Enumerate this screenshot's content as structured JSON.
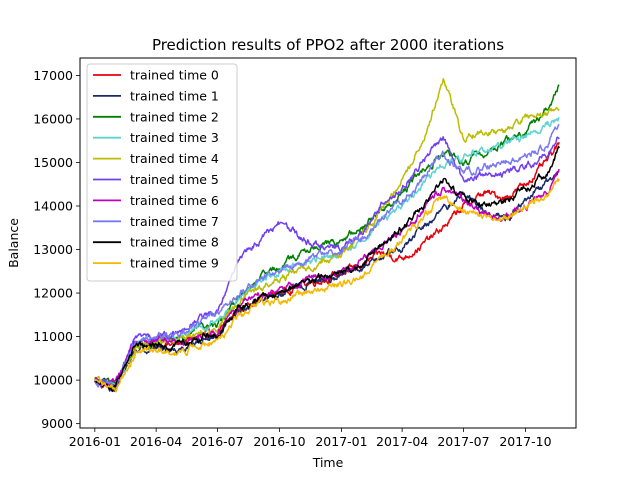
{
  "chart_data": {
    "type": "line",
    "title": "Prediction results of PPO2 after 2000 iterations",
    "xlabel": "Time",
    "ylabel": "Balance",
    "xlim": [
      "2015-12-10",
      "2017-12-15"
    ],
    "ylim": [
      8900,
      17400
    ],
    "x_ticks": [
      "2016-01",
      "2016-04",
      "2016-07",
      "2016-10",
      "2017-01",
      "2017-04",
      "2017-07",
      "2017-10"
    ],
    "y_ticks": [
      9000,
      10000,
      11000,
      12000,
      13000,
      14000,
      15000,
      16000,
      17000
    ],
    "grid": false,
    "legend_position": "upper-left",
    "x": [
      "2016-01-01",
      "2016-02-01",
      "2016-03-01",
      "2016-04-01",
      "2016-05-01",
      "2016-06-01",
      "2016-07-01",
      "2016-08-01",
      "2016-09-01",
      "2016-10-01",
      "2016-11-01",
      "2016-12-01",
      "2017-01-01",
      "2017-02-01",
      "2017-03-01",
      "2017-04-01",
      "2017-05-01",
      "2017-06-01",
      "2017-07-01",
      "2017-08-01",
      "2017-09-01",
      "2017-10-01",
      "2017-11-01",
      "2017-11-20"
    ],
    "series": [
      {
        "name": "trained time 0",
        "color": "#e8000b",
        "values": [
          10000,
          9850,
          10850,
          10850,
          10800,
          11000,
          11050,
          11600,
          11900,
          12000,
          12200,
          12300,
          12450,
          12650,
          12900,
          12800,
          13100,
          13500,
          14000,
          14300,
          14200,
          14500,
          15000,
          15400
        ]
      },
      {
        "name": "trained time 1",
        "color": "#1b2a6b",
        "values": [
          10000,
          9800,
          10700,
          10750,
          10700,
          10900,
          10950,
          11550,
          11850,
          11950,
          12150,
          12300,
          12400,
          12600,
          12900,
          13000,
          13500,
          13900,
          14300,
          13900,
          13700,
          14100,
          14500,
          14800
        ]
      },
      {
        "name": "trained time 2",
        "color": "#008000",
        "values": [
          10000,
          9900,
          10800,
          10900,
          10950,
          11200,
          11300,
          11900,
          12300,
          12600,
          12900,
          13100,
          13200,
          13500,
          13900,
          14300,
          14800,
          15200,
          15000,
          15200,
          15500,
          15700,
          16200,
          16800
        ]
      },
      {
        "name": "trained time 3",
        "color": "#5fd3d3",
        "values": [
          10000,
          9900,
          10900,
          10950,
          11000,
          11250,
          11350,
          11950,
          12300,
          12450,
          12650,
          12800,
          12900,
          13200,
          13700,
          14000,
          14500,
          15000,
          15100,
          15300,
          15400,
          15600,
          15900,
          16000
        ]
      },
      {
        "name": "trained time 4",
        "color": "#bcbd00",
        "values": [
          10000,
          9850,
          10750,
          10850,
          10900,
          11100,
          11200,
          11800,
          12100,
          12300,
          12500,
          12700,
          12900,
          13300,
          13900,
          14600,
          15500,
          16900,
          15600,
          15700,
          15700,
          16000,
          16100,
          16300
        ]
      },
      {
        "name": "trained time 5",
        "color": "#7040f0",
        "values": [
          10000,
          9800,
          10950,
          11000,
          11100,
          11400,
          11600,
          12800,
          13200,
          13600,
          13300,
          13100,
          13000,
          13400,
          14000,
          14400,
          15000,
          15600,
          14500,
          14800,
          14700,
          14900,
          15200,
          15600
        ]
      },
      {
        "name": "trained time 6",
        "color": "#c000c0",
        "values": [
          10000,
          9850,
          10900,
          10900,
          10850,
          11050,
          11100,
          11700,
          11950,
          12050,
          12250,
          12400,
          12500,
          12700,
          13100,
          13400,
          13900,
          14400,
          14100,
          13800,
          13700,
          14000,
          14300,
          14800
        ]
      },
      {
        "name": "trained time 7",
        "color": "#7a7af0",
        "values": [
          10000,
          9900,
          10900,
          10950,
          11100,
          11300,
          11500,
          12000,
          12300,
          12500,
          12700,
          12900,
          13000,
          13300,
          13700,
          14100,
          14600,
          15200,
          14700,
          14900,
          15000,
          15200,
          15400,
          15900
        ]
      },
      {
        "name": "trained time 8",
        "color": "#000000",
        "values": [
          10000,
          9850,
          10800,
          10800,
          10800,
          11000,
          11050,
          11650,
          11950,
          12000,
          12200,
          12350,
          12450,
          12700,
          13100,
          13500,
          14000,
          14600,
          14200,
          14000,
          14100,
          14400,
          14700,
          15300
        ]
      },
      {
        "name": "trained time 9",
        "color": "#f5b800",
        "values": [
          10000,
          9750,
          10600,
          10650,
          10600,
          10800,
          10850,
          11450,
          11750,
          11800,
          12000,
          12100,
          12200,
          12450,
          12800,
          13200,
          13700,
          14200,
          13900,
          13700,
          13700,
          14000,
          14300,
          14600
        ]
      }
    ]
  }
}
